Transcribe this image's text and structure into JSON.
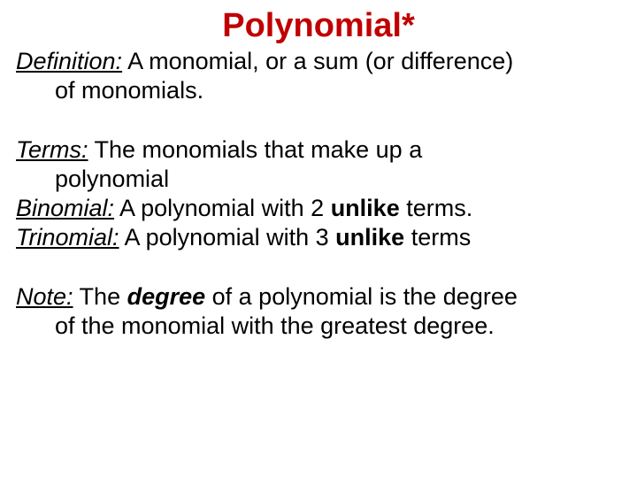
{
  "title": "Polynomial*",
  "title_color": "#c00000",
  "text_color": "#000000",
  "background_color": "#ffffff",
  "font_family": "Arial",
  "title_fontsize": 38,
  "body_fontsize": 27,
  "definition": {
    "label": "Definition:",
    "line1_after_label": "  A monomial, or a sum (or difference)",
    "line2": "of monomials."
  },
  "terms": {
    "label": "Terms:",
    "line1_after_label": "  The monomials that make up a",
    "line2": "polynomial"
  },
  "binomial": {
    "label": "Binomial:",
    "before_bold": "  A polynomial with 2 ",
    "bold": "unlike",
    "after_bold": " terms."
  },
  "trinomial": {
    "label": "Trinomial:",
    "before_bold": "  A polynomial with 3 ",
    "bold": "unlike",
    "after_bold": " terms"
  },
  "note": {
    "label": "Note:",
    "line1_before_bi": "  The ",
    "line1_bi": "degree",
    "line1_after_bi": " of a polynomial is the degree",
    "line2": "of the monomial with the greatest degree."
  }
}
